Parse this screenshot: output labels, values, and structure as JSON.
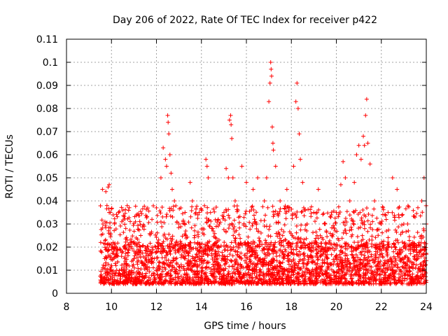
{
  "chart_data": {
    "type": "scatter",
    "title": "Day 206 of 2022, Rate Of TEC Index for receiver p422",
    "xlabel": "GPS time / hours",
    "ylabel": "ROTI / TECUs",
    "xlim": [
      8,
      24
    ],
    "ylim": [
      0,
      0.11
    ],
    "xticks": [
      8,
      10,
      12,
      14,
      16,
      18,
      20,
      22,
      24
    ],
    "yticks": [
      0,
      0.01,
      0.02,
      0.03,
      0.04,
      0.05,
      0.06,
      0.07,
      0.08,
      0.09,
      0.1,
      0.11
    ],
    "xtick_labels": [
      "8",
      "10",
      "12",
      "14",
      "16",
      "18",
      "20",
      "22",
      "24"
    ],
    "ytick_labels": [
      "0",
      "0.01",
      "0.02",
      "0.03",
      "0.04",
      "0.05",
      "0.06",
      "0.07",
      "0.08",
      "0.09",
      "0.1",
      "0.11"
    ],
    "grid": true,
    "marker": "+",
    "color": "#ff0000",
    "data_range": {
      "x_start": 9.5,
      "x_end": 24.0
    },
    "points": [
      [
        9.55,
        0.008
      ],
      [
        9.6,
        0.045
      ],
      [
        9.62,
        0.03
      ],
      [
        9.7,
        0.015
      ],
      [
        9.75,
        0.044
      ],
      [
        9.8,
        0.038
      ],
      [
        9.85,
        0.046
      ],
      [
        9.9,
        0.047
      ],
      [
        9.95,
        0.035
      ],
      [
        10.0,
        0.02
      ],
      [
        10.2,
        0.012
      ],
      [
        10.5,
        0.018
      ],
      [
        10.8,
        0.02
      ],
      [
        11.0,
        0.015
      ],
      [
        11.3,
        0.025
      ],
      [
        11.5,
        0.02
      ],
      [
        11.8,
        0.032
      ],
      [
        12.0,
        0.037
      ],
      [
        12.2,
        0.05
      ],
      [
        12.3,
        0.063
      ],
      [
        12.4,
        0.058
      ],
      [
        12.45,
        0.055
      ],
      [
        12.5,
        0.077
      ],
      [
        12.52,
        0.074
      ],
      [
        12.55,
        0.069
      ],
      [
        12.6,
        0.06
      ],
      [
        12.65,
        0.052
      ],
      [
        12.7,
        0.045
      ],
      [
        12.8,
        0.04
      ],
      [
        13.0,
        0.03
      ],
      [
        13.3,
        0.025
      ],
      [
        13.5,
        0.048
      ],
      [
        13.6,
        0.04
      ],
      [
        13.9,
        0.035
      ],
      [
        14.2,
        0.058
      ],
      [
        14.25,
        0.055
      ],
      [
        14.3,
        0.05
      ],
      [
        14.5,
        0.028
      ],
      [
        14.8,
        0.03
      ],
      [
        15.0,
        0.035
      ],
      [
        15.1,
        0.054
      ],
      [
        15.2,
        0.05
      ],
      [
        15.25,
        0.075
      ],
      [
        15.3,
        0.077
      ],
      [
        15.32,
        0.073
      ],
      [
        15.35,
        0.067
      ],
      [
        15.4,
        0.05
      ],
      [
        15.5,
        0.04
      ],
      [
        15.8,
        0.055
      ],
      [
        16.0,
        0.048
      ],
      [
        16.3,
        0.045
      ],
      [
        16.5,
        0.05
      ],
      [
        16.8,
        0.04
      ],
      [
        16.9,
        0.05
      ],
      [
        17.0,
        0.083
      ],
      [
        17.05,
        0.091
      ],
      [
        17.08,
        0.1
      ],
      [
        17.1,
        0.097
      ],
      [
        17.12,
        0.094
      ],
      [
        17.15,
        0.072
      ],
      [
        17.18,
        0.065
      ],
      [
        17.2,
        0.062
      ],
      [
        17.3,
        0.055
      ],
      [
        17.5,
        0.04
      ],
      [
        17.8,
        0.045
      ],
      [
        18.1,
        0.055
      ],
      [
        18.2,
        0.083
      ],
      [
        18.25,
        0.091
      ],
      [
        18.3,
        0.08
      ],
      [
        18.35,
        0.069
      ],
      [
        18.4,
        0.058
      ],
      [
        18.5,
        0.048
      ],
      [
        18.7,
        0.03
      ],
      [
        19.0,
        0.035
      ],
      [
        19.2,
        0.045
      ],
      [
        19.5,
        0.03
      ],
      [
        19.8,
        0.025
      ],
      [
        20.0,
        0.035
      ],
      [
        20.2,
        0.047
      ],
      [
        20.3,
        0.057
      ],
      [
        20.4,
        0.05
      ],
      [
        20.6,
        0.04
      ],
      [
        20.8,
        0.048
      ],
      [
        20.9,
        0.06
      ],
      [
        21.0,
        0.064
      ],
      [
        21.1,
        0.058
      ],
      [
        21.2,
        0.068
      ],
      [
        21.25,
        0.064
      ],
      [
        21.3,
        0.077
      ],
      [
        21.35,
        0.084
      ],
      [
        21.4,
        0.065
      ],
      [
        21.5,
        0.056
      ],
      [
        21.7,
        0.04
      ],
      [
        22.0,
        0.03
      ],
      [
        22.3,
        0.035
      ],
      [
        22.5,
        0.05
      ],
      [
        22.7,
        0.045
      ],
      [
        23.0,
        0.03
      ],
      [
        23.5,
        0.033
      ],
      [
        23.8,
        0.04
      ],
      [
        23.9,
        0.05
      ],
      [
        24.0,
        0.03
      ]
    ]
  }
}
